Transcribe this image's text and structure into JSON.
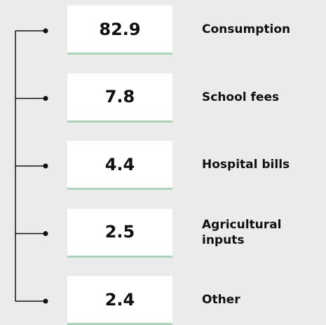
{
  "items": [
    {
      "value": 82.9,
      "label": "Consumption"
    },
    {
      "value": 7.8,
      "label": "School fees"
    },
    {
      "value": 4.4,
      "label": "Hospital bills"
    },
    {
      "value": 2.5,
      "label": "Agricultural inputs"
    },
    {
      "value": 2.4,
      "label": "Other"
    }
  ]
}
